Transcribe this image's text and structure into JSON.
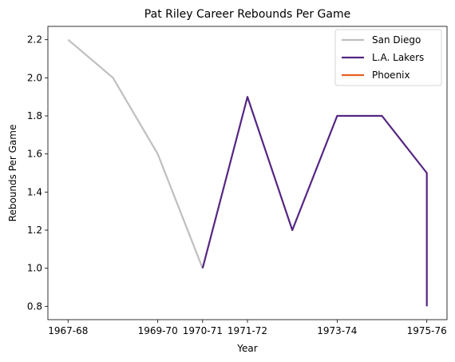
{
  "chart_data": {
    "type": "line",
    "title": "Pat Riley Career Rebounds Per Game",
    "xlabel": "Year",
    "ylabel": "Rebounds Per Game",
    "x_tick_labels": [
      "1967-68",
      "1969-70",
      "1970-71",
      "1971-72",
      "1973-74",
      "1975-76"
    ],
    "x_tick_positions": [
      0,
      2,
      3,
      4,
      6,
      8
    ],
    "xlim": [
      -0.45,
      8.45
    ],
    "ylim": [
      0.73,
      2.27
    ],
    "y_ticks": [
      0.8,
      1.0,
      1.2,
      1.4,
      1.6,
      1.8,
      2.0,
      2.2
    ],
    "y_tick_labels": [
      "0.8",
      "1.0",
      "1.2",
      "1.4",
      "1.6",
      "1.8",
      "2.0",
      "2.2"
    ],
    "legend_position": "top-right",
    "grid": false,
    "series": [
      {
        "name": "San Diego",
        "color": "#bfbfbf",
        "x": [
          0,
          1,
          2,
          3
        ],
        "y": [
          2.2,
          2.0,
          1.6,
          1.0
        ]
      },
      {
        "name": "L.A. Lakers",
        "color": "#552583",
        "x": [
          3,
          4,
          5,
          6,
          7,
          8,
          8
        ],
        "y": [
          1.0,
          1.9,
          1.2,
          1.8,
          1.8,
          1.5,
          0.8
        ]
      },
      {
        "name": "Phoenix",
        "color": "#e56020",
        "x": [],
        "y": []
      }
    ]
  }
}
